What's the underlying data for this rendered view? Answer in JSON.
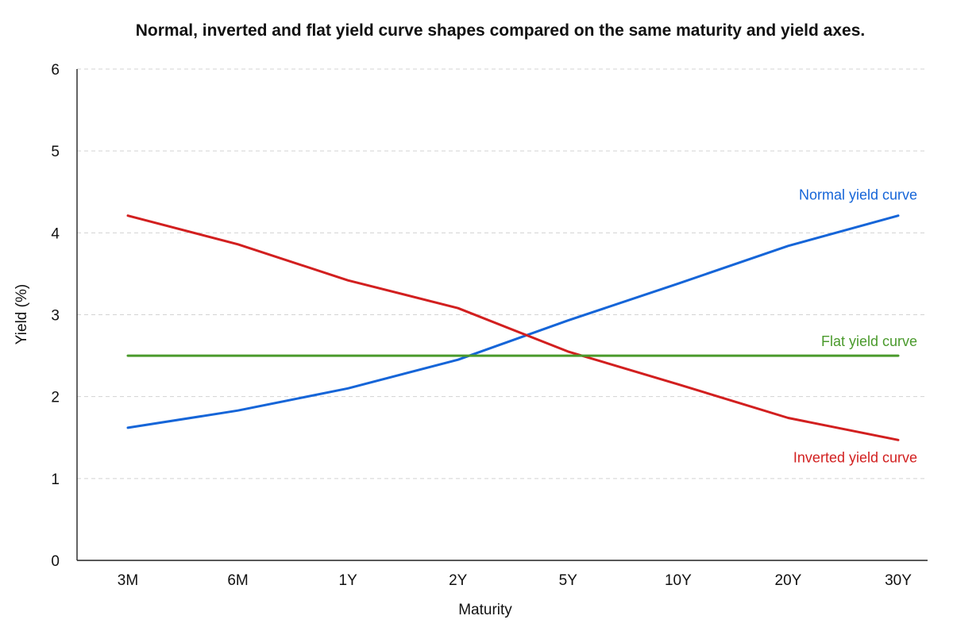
{
  "chart_data": {
    "type": "line",
    "title": "Normal, inverted and flat yield curve shapes compared on the same maturity and yield axes.",
    "xlabel": "Maturity",
    "ylabel": "Yield (%)",
    "categories": [
      "3M",
      "6M",
      "1Y",
      "2Y",
      "5Y",
      "10Y",
      "20Y",
      "30Y"
    ],
    "ylim": [
      0,
      6
    ],
    "yticks": [
      0,
      1,
      2,
      3,
      4,
      5,
      6
    ],
    "grid": true,
    "legend": "inline labels at line ends",
    "series": [
      {
        "name": "Normal yield curve",
        "color": "#1565d8",
        "values": [
          1.62,
          1.83,
          2.1,
          2.45,
          2.93,
          3.38,
          3.84,
          4.21
        ]
      },
      {
        "name": "Inverted yield curve",
        "color": "#d21f1f",
        "values": [
          4.21,
          3.86,
          3.42,
          3.08,
          2.55,
          2.15,
          1.74,
          1.47
        ]
      },
      {
        "name": "Flat yield curve",
        "color": "#4a9a2c",
        "values": [
          2.5,
          2.5,
          2.5,
          2.5,
          2.5,
          2.5,
          2.5,
          2.5
        ]
      }
    ]
  }
}
